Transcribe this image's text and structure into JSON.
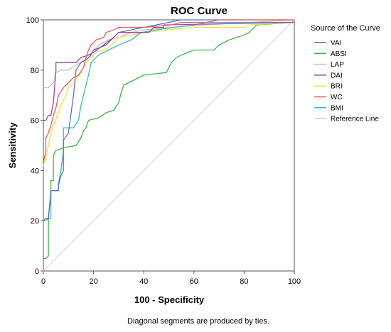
{
  "chart_data": {
    "type": "line",
    "title": "ROC Curve",
    "xlabel": "100 - Specificity",
    "ylabel": "Sensitivity",
    "xlim": [
      0,
      100
    ],
    "ylim": [
      0,
      100
    ],
    "x_ticks": [
      "0",
      "20",
      "40",
      "60",
      "80",
      "100"
    ],
    "y_ticks": [
      "0",
      "20",
      "40",
      "60",
      "80",
      "100"
    ],
    "legend_title": "Source of the Curve",
    "legend_position": "right",
    "footnote": "Diagonal segments are produced by ties.",
    "series": [
      {
        "name": "VAI",
        "color": "#5a6fc2",
        "points": [
          [
            0,
            20
          ],
          [
            1,
            21
          ],
          [
            2,
            21
          ],
          [
            3,
            32
          ],
          [
            6,
            32
          ],
          [
            6,
            34
          ],
          [
            7,
            38
          ],
          [
            8,
            40
          ],
          [
            8,
            52
          ],
          [
            10,
            55
          ],
          [
            12,
            70
          ],
          [
            13,
            80
          ],
          [
            15,
            83
          ],
          [
            17,
            84
          ],
          [
            19,
            86
          ],
          [
            20,
            88
          ],
          [
            25,
            90
          ],
          [
            28,
            93
          ],
          [
            30,
            95
          ],
          [
            40,
            97
          ],
          [
            45,
            98
          ],
          [
            55,
            100
          ],
          [
            100,
            100
          ]
        ]
      },
      {
        "name": "ABSI",
        "color": "#3cb54a",
        "points": [
          [
            0,
            5
          ],
          [
            1,
            5
          ],
          [
            2,
            6
          ],
          [
            2,
            22
          ],
          [
            3,
            30
          ],
          [
            3,
            36
          ],
          [
            4,
            36
          ],
          [
            4,
            46
          ],
          [
            5,
            48
          ],
          [
            8,
            49
          ],
          [
            13,
            50
          ],
          [
            15,
            53
          ],
          [
            16,
            56
          ],
          [
            17,
            57
          ],
          [
            18,
            60
          ],
          [
            22,
            61
          ],
          [
            25,
            63
          ],
          [
            28,
            64
          ],
          [
            30,
            67
          ],
          [
            31,
            71
          ],
          [
            32,
            74
          ],
          [
            34,
            75
          ],
          [
            36,
            76
          ],
          [
            40,
            78
          ],
          [
            49,
            79
          ],
          [
            51,
            83
          ],
          [
            53,
            85
          ],
          [
            55,
            86
          ],
          [
            60,
            88
          ],
          [
            68,
            88
          ],
          [
            70,
            90
          ],
          [
            74,
            92
          ],
          [
            77,
            93
          ],
          [
            80,
            94
          ],
          [
            82,
            95
          ],
          [
            85,
            98
          ],
          [
            100,
            99
          ]
        ]
      },
      {
        "name": "LAP",
        "color": "#c8c0b8",
        "points": [
          [
            0,
            73
          ],
          [
            2,
            73
          ],
          [
            3,
            74
          ],
          [
            4,
            75
          ],
          [
            5,
            79
          ],
          [
            7,
            80
          ],
          [
            10,
            80
          ],
          [
            13,
            82
          ],
          [
            18,
            85
          ],
          [
            20,
            88
          ],
          [
            22,
            90
          ],
          [
            26,
            92
          ],
          [
            30,
            93
          ],
          [
            35,
            95
          ],
          [
            40,
            96
          ],
          [
            50,
            97
          ],
          [
            65,
            98
          ],
          [
            100,
            100
          ]
        ]
      },
      {
        "name": "DAI",
        "color": "#9b45b0",
        "points": [
          [
            0,
            60
          ],
          [
            1,
            60
          ],
          [
            2,
            62
          ],
          [
            3,
            62
          ],
          [
            4,
            67
          ],
          [
            5,
            80
          ],
          [
            5,
            83
          ],
          [
            13,
            83
          ],
          [
            15,
            85
          ],
          [
            18,
            86
          ],
          [
            20,
            87
          ],
          [
            24,
            90
          ],
          [
            28,
            93
          ],
          [
            30,
            95
          ],
          [
            42,
            95
          ],
          [
            44,
            97
          ],
          [
            48,
            97
          ],
          [
            48,
            98
          ],
          [
            100,
            99
          ]
        ]
      },
      {
        "name": "BRI",
        "color": "#f0e33a",
        "points": [
          [
            0,
            42
          ],
          [
            1,
            45
          ],
          [
            2,
            50
          ],
          [
            3,
            55
          ],
          [
            4,
            58
          ],
          [
            6,
            63
          ],
          [
            7,
            66
          ],
          [
            8,
            68
          ],
          [
            9,
            70
          ],
          [
            10,
            73
          ],
          [
            13,
            76
          ],
          [
            15,
            79
          ],
          [
            17,
            83
          ],
          [
            19,
            85
          ],
          [
            21,
            87
          ],
          [
            24,
            88
          ],
          [
            26,
            89
          ],
          [
            28,
            91
          ],
          [
            30,
            93
          ],
          [
            35,
            94
          ],
          [
            40,
            95
          ],
          [
            50,
            96
          ],
          [
            60,
            97
          ],
          [
            70,
            97
          ],
          [
            80,
            97
          ],
          [
            82,
            98
          ],
          [
            100,
            99
          ]
        ]
      },
      {
        "name": "WC",
        "color": "#f05a5a",
        "points": [
          [
            0,
            43
          ],
          [
            1,
            48
          ],
          [
            1,
            53
          ],
          [
            2,
            55
          ],
          [
            3,
            58
          ],
          [
            4,
            62
          ],
          [
            5,
            65
          ],
          [
            6,
            70
          ],
          [
            8,
            73
          ],
          [
            10,
            75
          ],
          [
            12,
            77
          ],
          [
            14,
            78
          ],
          [
            16,
            81
          ],
          [
            17,
            85
          ],
          [
            18,
            88
          ],
          [
            19,
            90
          ],
          [
            21,
            92
          ],
          [
            24,
            93
          ],
          [
            25,
            95
          ],
          [
            28,
            96
          ],
          [
            30,
            97
          ],
          [
            40,
            97
          ],
          [
            51,
            98
          ],
          [
            55,
            99
          ],
          [
            65,
            99
          ],
          [
            70,
            100
          ],
          [
            100,
            100
          ]
        ]
      },
      {
        "name": "BMI",
        "color": "#3ab9b6",
        "points": [
          [
            0,
            20
          ],
          [
            3,
            21
          ],
          [
            3,
            32
          ],
          [
            6,
            32
          ],
          [
            6,
            35
          ],
          [
            7,
            40
          ],
          [
            8,
            48
          ],
          [
            8,
            57
          ],
          [
            12,
            57
          ],
          [
            14,
            60
          ],
          [
            15,
            66
          ],
          [
            16,
            70
          ],
          [
            17,
            74
          ],
          [
            18,
            78
          ],
          [
            19,
            83
          ],
          [
            20,
            84
          ],
          [
            22,
            86
          ],
          [
            24,
            87
          ],
          [
            26,
            88
          ],
          [
            30,
            90
          ],
          [
            35,
            92
          ],
          [
            39,
            95
          ],
          [
            45,
            96
          ],
          [
            52,
            97
          ],
          [
            60,
            98
          ],
          [
            65,
            99
          ],
          [
            100,
            99
          ]
        ]
      },
      {
        "name": "Reference Line",
        "color": "#d0d0d0",
        "points": [
          [
            0,
            0
          ],
          [
            100,
            100
          ]
        ]
      }
    ]
  }
}
